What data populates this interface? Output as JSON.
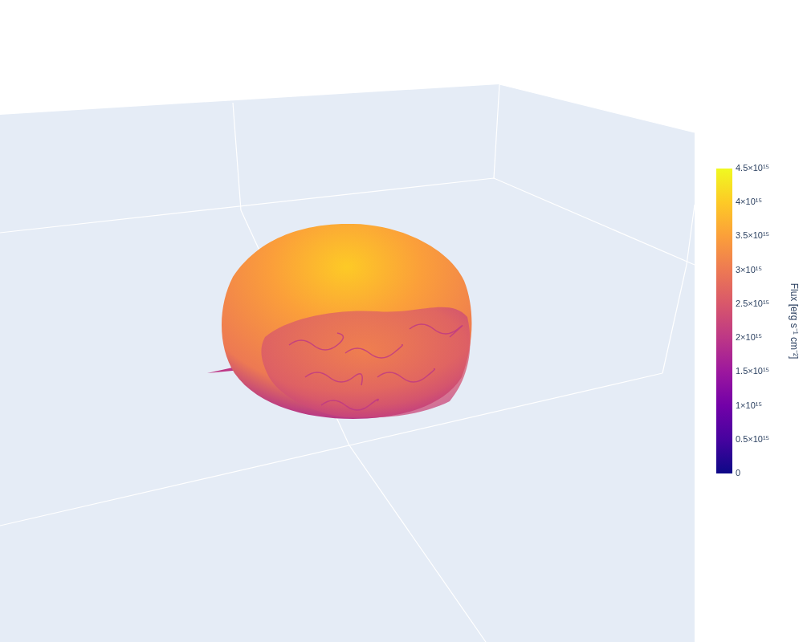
{
  "chart_data": {
    "type": "isosurface",
    "colorbar": {
      "title": "Flux [erg s⁻¹ cm⁻²]",
      "range": [
        0,
        4500000000000000
      ],
      "ticks": [
        {
          "value": 0,
          "label": "0"
        },
        {
          "value": 500000000000000,
          "label": "0.5×10¹⁵"
        },
        {
          "value": 1000000000000000,
          "label": "1×10¹⁵"
        },
        {
          "value": 1500000000000000,
          "label": "1.5×10¹⁵"
        },
        {
          "value": 2000000000000000,
          "label": "2×10¹⁵"
        },
        {
          "value": 2500000000000000,
          "label": "2.5×10¹⁵"
        },
        {
          "value": 3000000000000000,
          "label": "3×10¹⁵"
        },
        {
          "value": 3500000000000000,
          "label": "3.5×10¹⁵"
        },
        {
          "value": 4000000000000000,
          "label": "4×10¹⁵"
        },
        {
          "value": 4500000000000000,
          "label": "4.5×10¹⁵"
        }
      ]
    },
    "tick_labels": false
  }
}
